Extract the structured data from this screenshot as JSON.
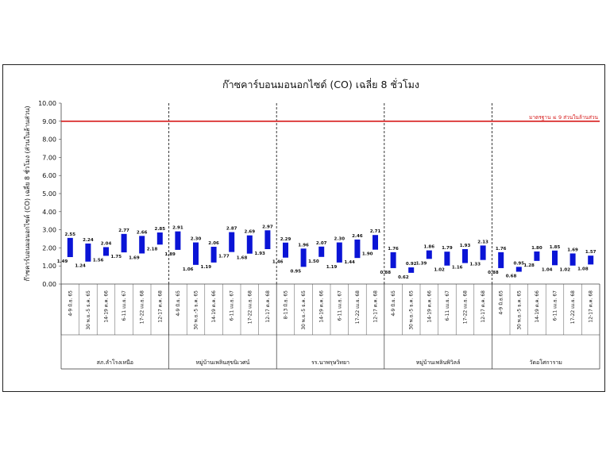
{
  "chart_data": {
    "type": "bar",
    "title": "ก๊าซคาร์บอนมอนอกไซด์ (CO) เฉลี่ย 8 ชั่วโมง",
    "ylabel": "ก๊าซคาร์บอนมอนอกไซด์ (CO) เฉลี่ย 8 ชั่วโมง (ส่วนในล้านส่วน)",
    "xlabel": "",
    "ylim": [
      0,
      10
    ],
    "yticks": [
      "0.00",
      "1.00",
      "2.00",
      "3.00",
      "4.00",
      "5.00",
      "6.00",
      "7.00",
      "8.00",
      "9.00",
      "10.00"
    ],
    "grid": false,
    "legend": "none",
    "bar_color": "#0a14d6",
    "reference_line": {
      "value": 9.0,
      "label": "มาตรฐาน ≤ 9 ส่วนในล้านส่วน",
      "color": "#d61a1a"
    },
    "groups": [
      {
        "name": "สภ.ลำโรงเหนือ",
        "items": [
          {
            "period": "4-9 มิ.ย. 65",
            "min": 1.49,
            "max": 2.55
          },
          {
            "period": "30 พ.ย.-5 ธ.ค. 65",
            "min": 1.24,
            "max": 2.24
          },
          {
            "period": "14-19 ต.ค. 66",
            "min": 1.56,
            "max": 2.04
          },
          {
            "period": "6-11 เม.ย. 67",
            "min": 1.75,
            "max": 2.77
          },
          {
            "period": "17-22 เม.ย. 68",
            "min": 1.69,
            "max": 2.66
          },
          {
            "period": "12-17 ต.ค. 68",
            "min": 2.18,
            "max": 2.85
          }
        ]
      },
      {
        "name": "หมู่บ้านเพลินสุขนิเวศน์",
        "items": [
          {
            "period": "4-9 มิ.ย. 65",
            "min": 1.89,
            "max": 2.91
          },
          {
            "period": "30 พ.ย.-5 ธ.ค. 65",
            "min": 1.06,
            "max": 2.3
          },
          {
            "period": "14-19 ต.ค. 66",
            "min": 1.19,
            "max": 2.06
          },
          {
            "period": "6-11 เม.ย. 67",
            "min": 1.77,
            "max": 2.87
          },
          {
            "period": "17-22 เม.ย. 68",
            "min": 1.68,
            "max": 2.69
          },
          {
            "period": "12-17 ต.ค. 68",
            "min": 1.93,
            "max": 2.97
          }
        ]
      },
      {
        "name": "รร.นาพรุษวิทยา",
        "items": [
          {
            "period": "8-13 มิ.ย. 65",
            "min": 1.46,
            "max": 2.29
          },
          {
            "period": "30 พ.ย.-5 ธ.ค. 65",
            "min": 0.95,
            "max": 1.96
          },
          {
            "period": "14-19 ต.ค. 66",
            "min": 1.5,
            "max": 2.07
          },
          {
            "period": "6-11 เม.ย. 67",
            "min": 1.19,
            "max": 2.3
          },
          {
            "period": "17-22 เม.ย. 68",
            "min": 1.44,
            "max": 2.46
          },
          {
            "period": "12-17 ต.ค. 68",
            "min": 1.9,
            "max": 2.71
          }
        ]
      },
      {
        "name": "หมู่บ้านเพลินพิวิลล์",
        "items": [
          {
            "period": "4-9 มิ.ย. 65",
            "min": 0.88,
            "max": 1.76
          },
          {
            "period": "30 พ.ย.-5 ธ.ค. 65",
            "min": 0.62,
            "max": 0.92
          },
          {
            "period": "14-19 ต.ค. 66",
            "min": 1.39,
            "max": 1.86
          },
          {
            "period": "6-11 เม.ย. 67",
            "min": 1.02,
            "max": 1.79
          },
          {
            "period": "17-22 เม.ย. 68",
            "min": 1.16,
            "max": 1.93
          },
          {
            "period": "12-17 ต.ค. 68",
            "min": 1.33,
            "max": 2.13
          }
        ]
      },
      {
        "name": "วัดอโศการาม",
        "items": [
          {
            "period": "4-9 มิ.ย.65",
            "min": 0.88,
            "max": 1.76
          },
          {
            "period": "30 พ.ย.-5 ธ.ค. 65",
            "min": 0.68,
            "max": 0.95
          },
          {
            "period": "14-19 ต.ค. 66",
            "min": 1.28,
            "max": 1.8
          },
          {
            "period": "6-11 เม.ย. 67",
            "min": 1.04,
            "max": 1.85
          },
          {
            "period": "17-22 เม.ย. 68",
            "min": 1.02,
            "max": 1.69
          },
          {
            "period": "12-17 ต.ค. 68",
            "min": 1.08,
            "max": 1.57
          }
        ]
      }
    ]
  }
}
